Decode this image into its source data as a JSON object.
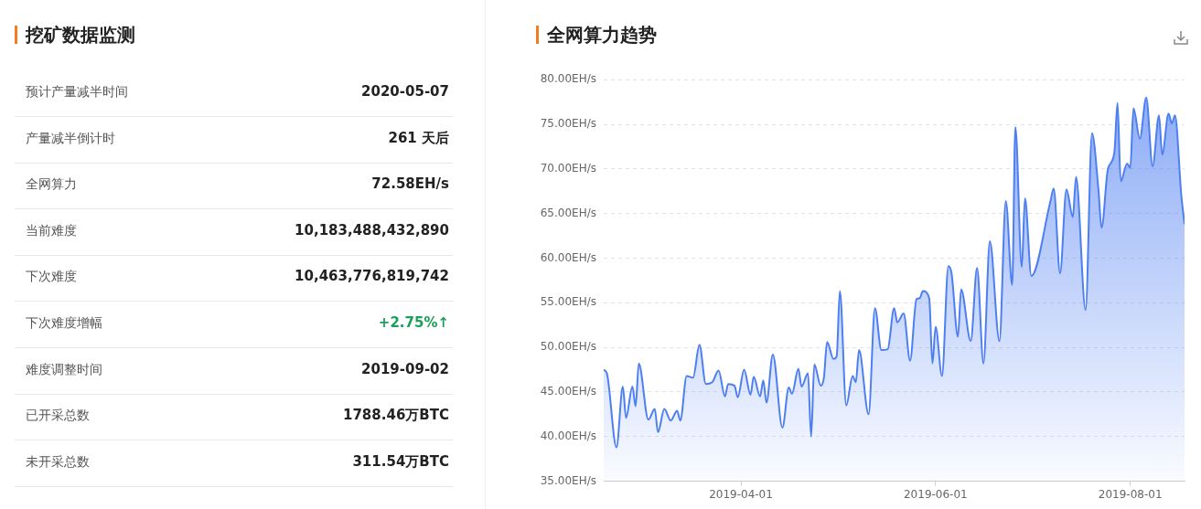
{
  "chart_data": [
    {
      "type": "other",
      "title": "挖矿数据监测",
      "categories": [
        "预计产量减半时间",
        "产量减半倒计时",
        "全网算力",
        "当前难度",
        "下次难度",
        "下次难度增幅",
        "难度调整时间",
        "已开采总数",
        "未开采总数"
      ],
      "value_labels": [
        "2020-05-07",
        "261 天后",
        "72.58EH/s",
        "10,183,488,432,890",
        "10,463,776,819,742",
        "+2.75%↑",
        "2019-09-02",
        "1788.46万BTC",
        "311.54万BTC"
      ],
      "colors": [
        "#222222",
        "#222222",
        "#222222",
        "#222222",
        "#222222",
        "#1aa05a",
        "#222222",
        "#222222",
        "#222222"
      ]
    },
    {
      "type": "area",
      "title": "全网算力趋势",
      "x": [
        "2019-02-17",
        "2019-02-18",
        "2019-02-21",
        "2019-02-23",
        "2019-02-24",
        "2019-02-26",
        "2019-02-27",
        "2019-02-28",
        "2019-03-03",
        "2019-03-05",
        "2019-03-06",
        "2019-03-08",
        "2019-03-10",
        "2019-03-12",
        "2019-03-13",
        "2019-03-15",
        "2019-03-17",
        "2019-03-19",
        "2019-03-21",
        "2019-03-23",
        "2019-03-25",
        "2019-03-27",
        "2019-03-28",
        "2019-03-30",
        "2019-03-31",
        "2019-04-02",
        "2019-04-04",
        "2019-04-05",
        "2019-04-07",
        "2019-04-08",
        "2019-04-09",
        "2019-04-11",
        "2019-04-14",
        "2019-04-16",
        "2019-04-17",
        "2019-04-19",
        "2019-04-20",
        "2019-04-22",
        "2019-04-23",
        "2019-04-24",
        "2019-04-26",
        "2019-04-27",
        "2019-04-28",
        "2019-04-30",
        "2019-05-01",
        "2019-05-02",
        "2019-05-04",
        "2019-05-06",
        "2019-05-07",
        "2019-05-08",
        "2019-05-11",
        "2019-05-13",
        "2019-05-15",
        "2019-05-17",
        "2019-05-19",
        "2019-05-20",
        "2019-05-22",
        "2019-05-24",
        "2019-05-26",
        "2019-05-27",
        "2019-05-28",
        "2019-05-30",
        "2019-05-31",
        "2019-06-01",
        "2019-06-03",
        "2019-06-05",
        "2019-06-06",
        "2019-06-08",
        "2019-06-09",
        "2019-06-12",
        "2019-06-14",
        "2019-06-16",
        "2019-06-18",
        "2019-06-21",
        "2019-06-23",
        "2019-06-25",
        "2019-06-26",
        "2019-06-28",
        "2019-06-29",
        "2019-07-01",
        "2019-07-07",
        "2019-07-08",
        "2019-07-10",
        "2019-07-12",
        "2019-07-14",
        "2019-07-15",
        "2019-07-18",
        "2019-07-20",
        "2019-07-22",
        "2019-07-23",
        "2019-07-25",
        "2019-07-27",
        "2019-07-28",
        "2019-07-29",
        "2019-07-31",
        "2019-08-01",
        "2019-08-02",
        "2019-08-04",
        "2019-08-06",
        "2019-08-08",
        "2019-08-10",
        "2019-08-11",
        "2019-08-13",
        "2019-08-14",
        "2019-08-15",
        "2019-08-17",
        "2019-08-18"
      ],
      "series": [
        {
          "color": "#4d7ef2",
          "values": [
            47.5,
            47.1,
            38.8,
            45.6,
            42.1,
            45.6,
            43.4,
            48.2,
            41.9,
            43.1,
            40.5,
            43.1,
            41.8,
            42.9,
            41.8,
            46.8,
            46.6,
            50.3,
            45.9,
            46.1,
            47.4,
            44.5,
            45.9,
            45.7,
            44.4,
            47.5,
            44.7,
            46.7,
            44.5,
            46.3,
            43.8,
            49.2,
            41.0,
            45.5,
            44.8,
            47.6,
            45.6,
            47.1,
            40.0,
            48.1,
            45.7,
            46.6,
            50.6,
            48.7,
            49.0,
            56.3,
            43.5,
            46.8,
            46.1,
            49.7,
            42.5,
            54.4,
            49.7,
            49.8,
            54.4,
            52.8,
            53.8,
            48.5,
            55.4,
            55.5,
            56.3,
            55.5,
            48.2,
            52.3,
            46.8,
            59.1,
            58.3,
            51.2,
            56.5,
            50.7,
            58.9,
            48.2,
            61.9,
            50.7,
            66.4,
            57.0,
            74.7,
            59.0,
            66.7,
            58.0,
            66.4,
            67.8,
            58.3,
            67.7,
            64.6,
            69.1,
            54.2,
            74.0,
            67.8,
            63.4,
            70.0,
            71.8,
            77.4,
            68.6,
            70.6,
            70.1,
            76.8,
            73.4,
            78.0,
            70.3,
            76.0,
            71.6,
            76.2,
            75.1,
            76.0,
            67.0,
            63.8
          ]
        }
      ],
      "xlim": [
        "2019-02-17",
        "2019-08-18"
      ],
      "xticks": [
        "2019-04-01",
        "2019-06-01",
        "2019-08-01"
      ],
      "ylim": [
        35,
        80
      ],
      "yticks": [
        {
          "value": 35,
          "label": "35.00EH/s"
        },
        {
          "value": 40,
          "label": "40.00EH/s"
        },
        {
          "value": 45,
          "label": "45.00EH/s"
        },
        {
          "value": 50,
          "label": "50.00EH/s"
        },
        {
          "value": 55,
          "label": "55.00EH/s"
        },
        {
          "value": 60,
          "label": "60.00EH/s"
        },
        {
          "value": 65,
          "label": "65.00EH/s"
        },
        {
          "value": 70,
          "label": "70.00EH/s"
        },
        {
          "value": 75,
          "label": "75.00EH/s"
        },
        {
          "value": 80,
          "label": "80.00EH/s"
        }
      ],
      "grid": "y",
      "marker": "none"
    }
  ]
}
